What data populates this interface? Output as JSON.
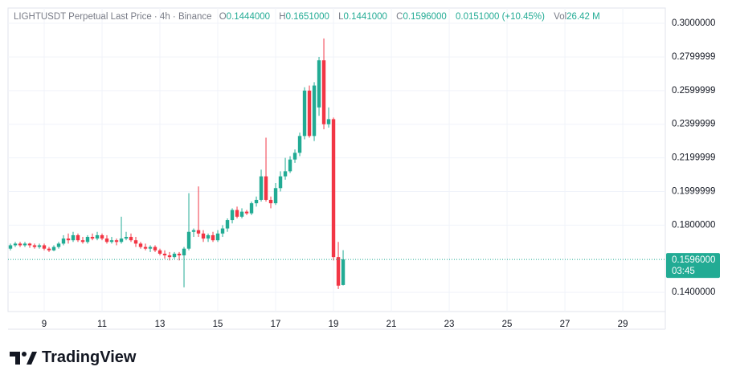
{
  "chart_data": {
    "type": "candlestick",
    "legend": {
      "title": "LIGHTUSDT Perpetual Last Price · 4h · Binance",
      "open_label": "O",
      "open": "0.1444000",
      "high_label": "H",
      "high": "0.1651000",
      "low_label": "L",
      "low": "0.1441000",
      "close_label": "C",
      "close": "0.1596000",
      "change": "0.0151000 (+10.45%)",
      "volume_label": "Vol",
      "volume": "26.42 M"
    },
    "x": [
      7.8333,
      8,
      8.1667,
      8.3333,
      8.5,
      8.6667,
      8.8333,
      9,
      9.1667,
      9.3333,
      9.5,
      9.6667,
      9.8333,
      10,
      10.1667,
      10.3333,
      10.5,
      10.6667,
      10.8333,
      11,
      11.1667,
      11.3333,
      11.5,
      11.6667,
      11.8333,
      12,
      12.1667,
      12.3333,
      12.5,
      12.6667,
      12.8333,
      13,
      13.1667,
      13.3333,
      13.5,
      13.6667,
      13.8333,
      14,
      14.1667,
      14.3333,
      14.5,
      14.6667,
      14.8333,
      15,
      15.1667,
      15.3333,
      15.5,
      15.6667,
      15.8333,
      16,
      16.1667,
      16.3333,
      16.5,
      16.6667,
      16.8333,
      17,
      17.1667,
      17.3333,
      17.5,
      17.6667,
      17.8333,
      18,
      18.1667,
      18.3333,
      18.5,
      18.6667,
      18.8333,
      19,
      19.1667,
      19.3333
    ],
    "open": [
      0.166,
      0.168,
      0.169,
      0.168,
      0.169,
      0.168,
      0.167,
      0.168,
      0.166,
      0.165,
      0.167,
      0.169,
      0.172,
      0.171,
      0.174,
      0.171,
      0.17,
      0.173,
      0.172,
      0.174,
      0.172,
      0.17,
      0.171,
      0.17,
      0.172,
      0.173,
      0.171,
      0.169,
      0.167,
      0.166,
      0.167,
      0.165,
      0.163,
      0.162,
      0.161,
      0.163,
      0.162,
      0.166,
      0.176,
      0.177,
      0.175,
      0.172,
      0.174,
      0.171,
      0.175,
      0.178,
      0.183,
      0.189,
      0.185,
      0.188,
      0.187,
      0.193,
      0.195,
      0.209,
      0.195,
      0.193,
      0.202,
      0.209,
      0.212,
      0.219,
      0.223,
      0.233,
      0.26,
      0.233,
      0.25,
      0.278,
      0.24,
      0.243,
      0.161,
      0.1444
    ],
    "high": [
      0.169,
      0.17,
      0.17,
      0.17,
      0.1695,
      0.169,
      0.169,
      0.169,
      0.167,
      0.168,
      0.17,
      0.174,
      0.175,
      0.176,
      0.175,
      0.173,
      0.174,
      0.175,
      0.176,
      0.175,
      0.174,
      0.173,
      0.172,
      0.185,
      0.176,
      0.175,
      0.173,
      0.17,
      0.169,
      0.168,
      0.168,
      0.166,
      0.165,
      0.164,
      0.164,
      0.164,
      0.167,
      0.199,
      0.178,
      0.203,
      0.177,
      0.175,
      0.176,
      0.177,
      0.18,
      0.184,
      0.19,
      0.191,
      0.19,
      0.189,
      0.194,
      0.197,
      0.213,
      0.232,
      0.197,
      0.205,
      0.212,
      0.22,
      0.221,
      0.225,
      0.235,
      0.262,
      0.263,
      0.265,
      0.28,
      0.291,
      0.25,
      0.244,
      0.17,
      0.1651
    ],
    "low": [
      0.165,
      0.167,
      0.167,
      0.167,
      0.1665,
      0.166,
      0.166,
      0.165,
      0.164,
      0.1645,
      0.166,
      0.168,
      0.169,
      0.17,
      0.17,
      0.169,
      0.169,
      0.171,
      0.171,
      0.171,
      0.169,
      0.169,
      0.168,
      0.169,
      0.171,
      0.17,
      0.167,
      0.166,
      0.165,
      0.164,
      0.164,
      0.162,
      0.16,
      0.159,
      0.16,
      0.159,
      0.143,
      0.165,
      0.173,
      0.173,
      0.17,
      0.17,
      0.17,
      0.17,
      0.173,
      0.176,
      0.181,
      0.184,
      0.184,
      0.186,
      0.186,
      0.191,
      0.194,
      0.194,
      0.19,
      0.192,
      0.2,
      0.207,
      0.211,
      0.217,
      0.221,
      0.231,
      0.232,
      0.23,
      0.245,
      0.237,
      0.238,
      0.159,
      0.142,
      0.1441
    ],
    "close": [
      0.168,
      0.169,
      0.168,
      0.169,
      0.168,
      0.167,
      0.168,
      0.166,
      0.165,
      0.167,
      0.169,
      0.172,
      0.171,
      0.174,
      0.171,
      0.17,
      0.173,
      0.172,
      0.174,
      0.172,
      0.17,
      0.171,
      0.17,
      0.172,
      0.173,
      0.171,
      0.169,
      0.167,
      0.166,
      0.167,
      0.165,
      0.163,
      0.162,
      0.161,
      0.163,
      0.162,
      0.166,
      0.176,
      0.177,
      0.175,
      0.172,
      0.174,
      0.171,
      0.175,
      0.178,
      0.183,
      0.189,
      0.185,
      0.188,
      0.187,
      0.193,
      0.195,
      0.209,
      0.195,
      0.193,
      0.202,
      0.209,
      0.212,
      0.219,
      0.223,
      0.233,
      0.26,
      0.233,
      0.263,
      0.278,
      0.24,
      0.243,
      0.161,
      0.144,
      0.1596
    ],
    "up_color": "#22ab94",
    "down_color": "#f23645",
    "xlim": [
      7.75,
      30.47
    ],
    "xticks": [
      9,
      11,
      13,
      15,
      17,
      19,
      21,
      23,
      25,
      27,
      29
    ],
    "ylim": [
      0.1286,
      0.3091
    ],
    "yticks": [
      {
        "value": 0.3,
        "label": "0.3000000"
      },
      {
        "value": 0.28,
        "label": "0.2799999"
      },
      {
        "value": 0.26,
        "label": "0.2599999"
      },
      {
        "value": 0.24,
        "label": "0.2399999"
      },
      {
        "value": 0.22,
        "label": "0.2199999"
      },
      {
        "value": 0.2,
        "label": "0.1999999"
      },
      {
        "value": 0.18,
        "label": "0.1800000"
      },
      {
        "value": 0.14,
        "label": "0.1400000"
      }
    ],
    "grid": true,
    "last_price": {
      "value": 0.1596,
      "label": "0.1596000",
      "countdown": "03:45"
    },
    "branding": "TradingView"
  }
}
